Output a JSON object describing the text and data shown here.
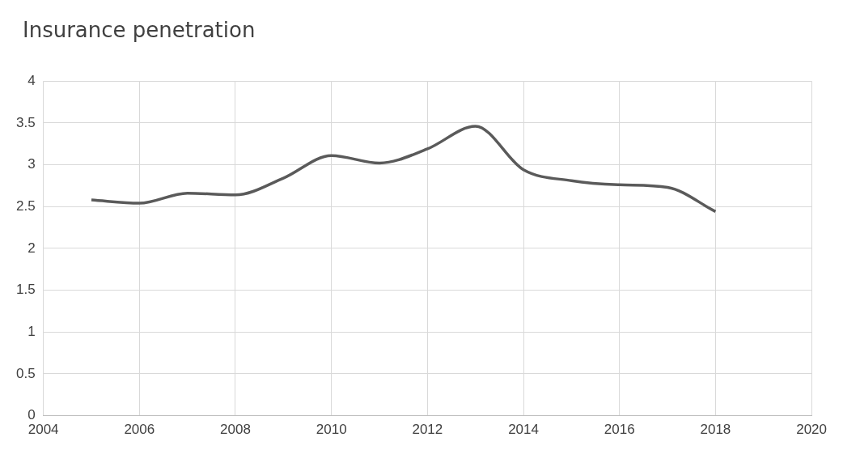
{
  "chart_data": {
    "type": "line",
    "title": "Insurance penetration",
    "x": [
      2005,
      2006,
      2007,
      2008,
      2009,
      2010,
      2011,
      2012,
      2013,
      2014,
      2015,
      2016,
      2017,
      2018
    ],
    "series": [
      {
        "color": "#5a5a5a",
        "values": [
          2.58,
          2.54,
          2.66,
          2.64,
          2.84,
          3.11,
          3.02,
          3.19,
          3.46,
          2.94,
          2.81,
          2.76,
          2.73,
          2.44
        ]
      }
    ],
    "xlim": [
      2004,
      2020
    ],
    "xticks": [
      2004,
      2006,
      2008,
      2010,
      2012,
      2014,
      2016,
      2018,
      2020
    ],
    "ylim": [
      0,
      4
    ],
    "yticks": [
      0,
      0.5,
      1,
      1.5,
      2,
      2.5,
      3,
      3.5,
      4
    ],
    "grid": true,
    "legend": false,
    "marker": "none",
    "line_style": "solid"
  }
}
